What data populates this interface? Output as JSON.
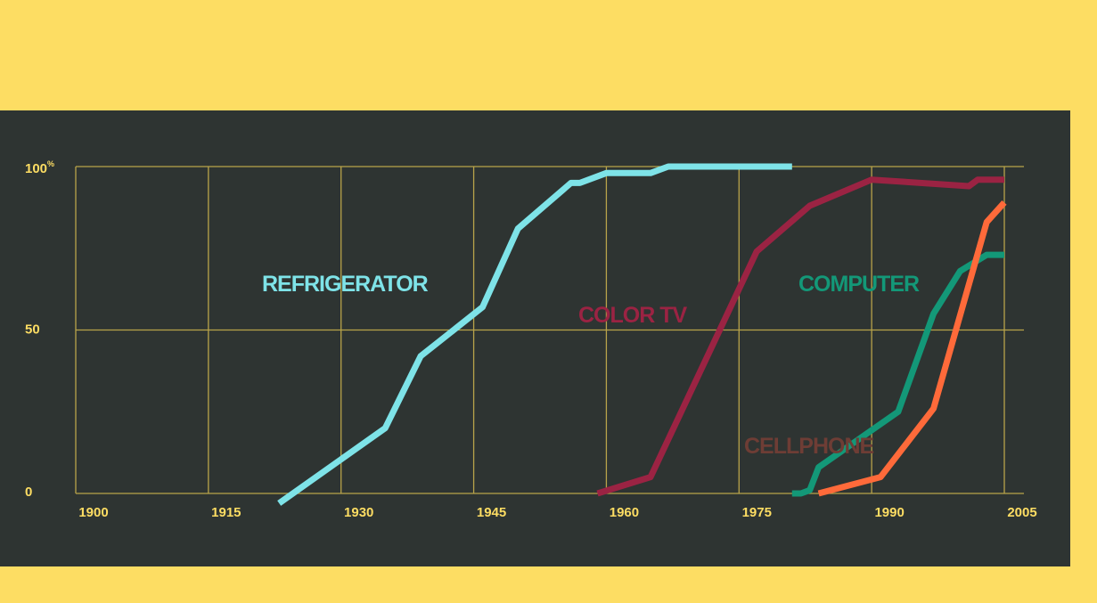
{
  "colors": {
    "background": "#fddd63",
    "panel": "#2e3432",
    "grid": "#b8a34a",
    "tick_text": "#fddd63"
  },
  "chart_data": {
    "type": "line",
    "title": "",
    "xlabel": "",
    "ylabel": "",
    "xlim": [
      1900,
      2005
    ],
    "ylim": [
      0,
      100
    ],
    "grid": true,
    "x_ticks": [
      "1900",
      "1915",
      "1930",
      "1945",
      "1960",
      "1975",
      "1990",
      "2005"
    ],
    "y_ticks": [
      {
        "value": 0,
        "label": "0",
        "sup": ""
      },
      {
        "value": 50,
        "label": "50",
        "sup": ""
      },
      {
        "value": 100,
        "label": "100",
        "sup": "%"
      }
    ],
    "series": [
      {
        "name": "REFRIGERATOR",
        "color": "#7ee3e8",
        "points": [
          [
            1923,
            -3
          ],
          [
            1935,
            20
          ],
          [
            1939,
            42
          ],
          [
            1946,
            57
          ],
          [
            1950,
            81
          ],
          [
            1956,
            95
          ],
          [
            1957,
            95
          ],
          [
            1960,
            98
          ],
          [
            1965,
            98
          ],
          [
            1967,
            100
          ],
          [
            1981,
            100
          ]
        ]
      },
      {
        "name": "COLOR TV",
        "color": "#9b2343",
        "points": [
          [
            1959,
            0
          ],
          [
            1965,
            5
          ],
          [
            1977,
            74
          ],
          [
            1983,
            88
          ],
          [
            1990,
            96
          ],
          [
            2001,
            94
          ],
          [
            2002,
            96
          ],
          [
            2005,
            96
          ]
        ]
      },
      {
        "name": "COMPUTER",
        "color": "#139878",
        "points": [
          [
            1981,
            0
          ],
          [
            1982,
            0
          ],
          [
            1983,
            1
          ],
          [
            1984,
            8
          ],
          [
            1993,
            25
          ],
          [
            1997,
            55
          ],
          [
            2000,
            68
          ],
          [
            2003,
            73
          ],
          [
            2005,
            73
          ]
        ]
      },
      {
        "name": "CELLPHONE",
        "color": "#ff6a3a",
        "label_color": "#6e3d35",
        "points": [
          [
            1984,
            0
          ],
          [
            1991,
            5
          ],
          [
            1997,
            26
          ],
          [
            2003,
            83
          ],
          [
            2005,
            89
          ]
        ]
      }
    ]
  }
}
